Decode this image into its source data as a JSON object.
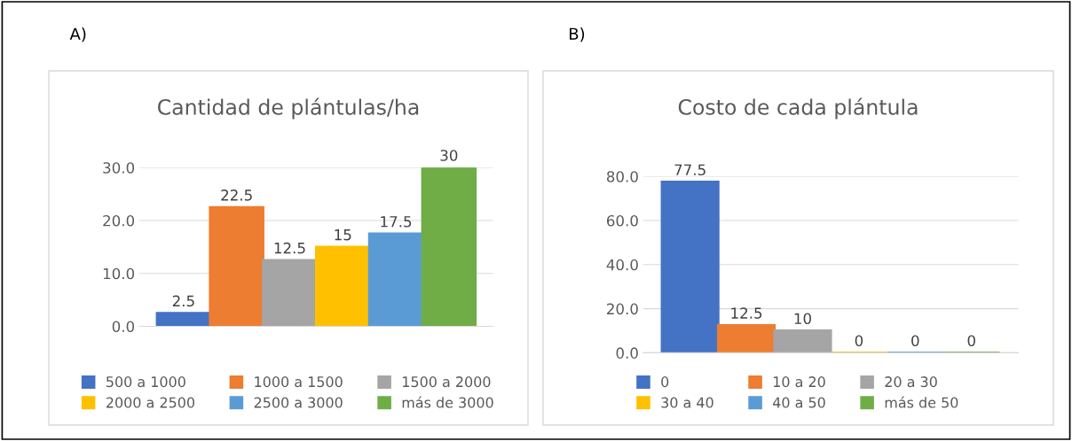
{
  "chart_data": [
    {
      "type": "bar",
      "title": "Cantidad de plántulas/ha",
      "annotations": [
        "A)"
      ],
      "categories": [
        null
      ],
      "series": [
        {
          "name": "500 a 1000",
          "color": "#4472c4",
          "values": [
            2.5
          ]
        },
        {
          "name": "1000 a 1500",
          "color": "#ed7d31",
          "values": [
            22.5
          ]
        },
        {
          "name": "1500 a 2000",
          "color": "#a5a5a5",
          "values": [
            12.5
          ]
        },
        {
          "name": "2000 a 2500",
          "color": "#ffc000",
          "values": [
            15
          ]
        },
        {
          "name": "2500 a 3000",
          "color": "#5b9bd5",
          "values": [
            17.5
          ]
        },
        {
          "name": "más de 3000",
          "color": "#70ad47",
          "values": [
            30
          ]
        }
      ],
      "ylim": [
        0,
        30
      ],
      "yticks": [
        {
          "value": 0,
          "label": "0.0"
        },
        {
          "value": 10,
          "label": "10.0"
        },
        {
          "value": 20,
          "label": "20.0"
        },
        {
          "value": 30,
          "label": "30.0"
        }
      ],
      "grid": "y",
      "legend": "bottom",
      "data_labels": true
    },
    {
      "type": "bar",
      "title": "Costo de cada plántula",
      "annotations": [
        "B)"
      ],
      "categories": [
        null
      ],
      "series": [
        {
          "name": "0",
          "color": "#4472c4",
          "values": [
            77.5
          ]
        },
        {
          "name": "10 a 20",
          "color": "#ed7d31",
          "values": [
            12.5
          ]
        },
        {
          "name": "20 a 30",
          "color": "#a5a5a5",
          "values": [
            10
          ]
        },
        {
          "name": "30 a 40",
          "color": "#ffc000",
          "values": [
            0
          ]
        },
        {
          "name": "40 a 50",
          "color": "#5b9bd5",
          "values": [
            0
          ]
        },
        {
          "name": "más de 50",
          "color": "#70ad47",
          "values": [
            0
          ]
        }
      ],
      "ylim": [
        0,
        80
      ],
      "yticks": [
        {
          "value": 0,
          "label": "0.0"
        },
        {
          "value": 20,
          "label": "20.0"
        },
        {
          "value": 40,
          "label": "40.0"
        },
        {
          "value": 60,
          "label": "60.0"
        },
        {
          "value": 80,
          "label": "80.0"
        }
      ],
      "grid": "y",
      "legend": "bottom",
      "data_labels": true
    }
  ]
}
